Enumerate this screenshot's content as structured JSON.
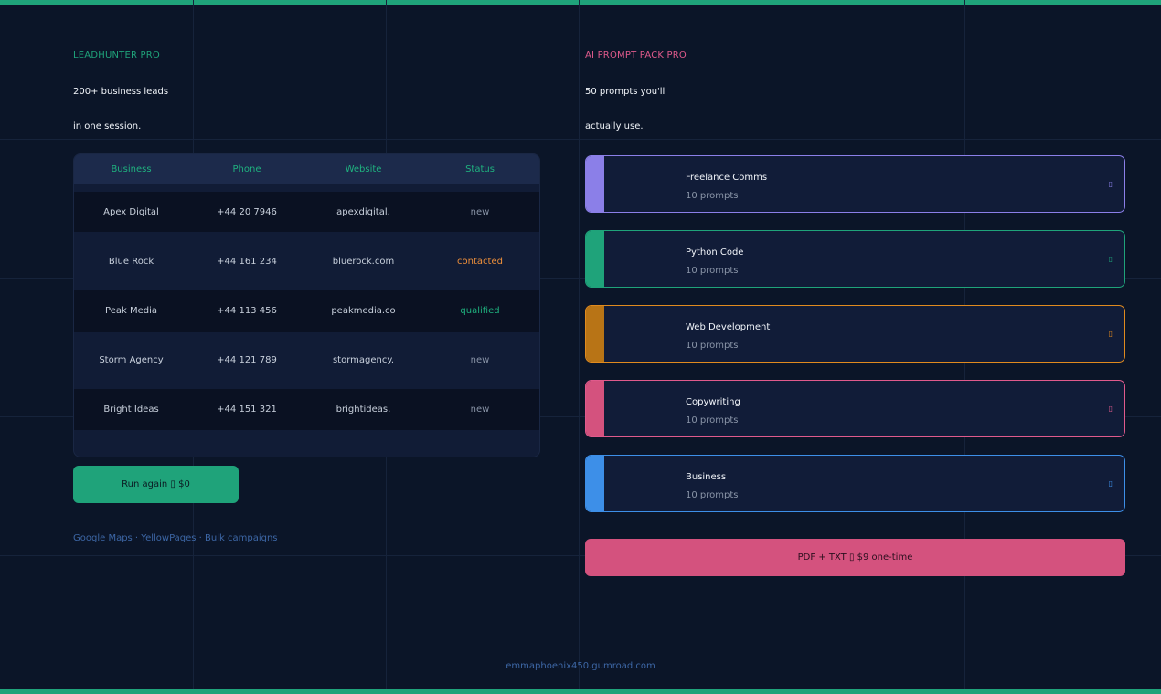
{
  "left": {
    "eyebrow": "LEADHUNTER PRO",
    "headline_line1": "200+ business leads",
    "headline_line2": "in one session.",
    "table": {
      "headers": [
        "Business",
        "Phone",
        "Website",
        "Status"
      ],
      "rows": [
        {
          "business": "Apex Digital",
          "phone": "+44 20 7946",
          "website": "apexdigital.",
          "status": "new"
        },
        {
          "business": "Blue Rock",
          "phone": "+44 161 234",
          "website": "bluerock.com",
          "status": "contacted"
        },
        {
          "business": "Peak Media",
          "phone": "+44 113 456",
          "website": "peakmedia.co",
          "status": "qualified"
        },
        {
          "business": "Storm Agency",
          "phone": "+44 121 789",
          "website": "stormagency.",
          "status": "new"
        },
        {
          "business": "Bright Ideas",
          "phone": "+44 151 321",
          "website": "brightideas.",
          "status": "new"
        }
      ]
    },
    "run_button": "Run again ▯ $0",
    "sources": "Google Maps · YellowPages · Bulk campaigns"
  },
  "right": {
    "eyebrow": "AI PROMPT PACK PRO",
    "headline_line1": "50 prompts you'll",
    "headline_line2": "actually use.",
    "cards": [
      {
        "title": "Freelance Comms",
        "count": "10 prompts",
        "color": "#8b7fe8",
        "icon": "▯"
      },
      {
        "title": "Python Code",
        "count": "10 prompts",
        "color": "#1fa37a",
        "icon": "▯"
      },
      {
        "title": "Web Development",
        "count": "10 prompts",
        "color": "#e08a1e",
        "icon": "▯"
      },
      {
        "title": "Copywriting",
        "count": "10 prompts",
        "color": "#e05a8c",
        "icon": "▯"
      },
      {
        "title": "Business",
        "count": "10 prompts",
        "color": "#3d8fe8",
        "icon": "▯"
      }
    ],
    "buy_button": "PDF + TXT ▯ $9 one-time"
  },
  "footer": "emmaphoenix450.gumroad.com",
  "colors": {
    "accent_green": "#1fa37a",
    "accent_pink": "#d4527e",
    "status_new": "#8a95a8",
    "status_contacted": "#f0903a",
    "status_qualified": "#1fb27f"
  }
}
